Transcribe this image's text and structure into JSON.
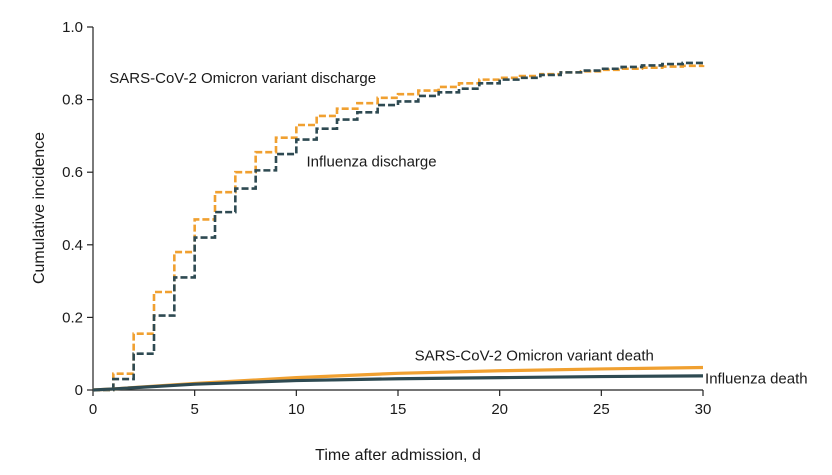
{
  "chart_data": {
    "type": "line",
    "xlabel": "Time after admission, d",
    "ylabel": "Cumulative incidence",
    "xlim": [
      0,
      30
    ],
    "ylim": [
      0,
      1.0
    ],
    "x_ticks": [
      0,
      5,
      10,
      15,
      20,
      25,
      30
    ],
    "x_tick_labels": [
      "0",
      "5",
      "10",
      "15",
      "20",
      "25",
      "30"
    ],
    "y_ticks": [
      0,
      0.2,
      0.4,
      0.6,
      0.8,
      1.0
    ],
    "y_tick_labels": [
      "0",
      "0.2",
      "0.4",
      "0.6",
      "0.8",
      "1.0"
    ],
    "grid": false,
    "series": [
      {
        "name": "SARS-CoV-2 Omicron variant discharge",
        "color": "#f0a030",
        "style": "dashed-step",
        "x": [
          0,
          1,
          2,
          3,
          4,
          5,
          6,
          7,
          8,
          9,
          10,
          11,
          12,
          13,
          14,
          15,
          16,
          17,
          18,
          19,
          20,
          21,
          22,
          23,
          24,
          25,
          26,
          27,
          28,
          29,
          30
        ],
        "y": [
          0,
          0.045,
          0.155,
          0.27,
          0.38,
          0.47,
          0.545,
          0.6,
          0.655,
          0.695,
          0.73,
          0.755,
          0.775,
          0.79,
          0.805,
          0.815,
          0.825,
          0.835,
          0.845,
          0.855,
          0.86,
          0.865,
          0.87,
          0.875,
          0.878,
          0.882,
          0.885,
          0.888,
          0.891,
          0.893,
          0.895
        ]
      },
      {
        "name": "Influenza discharge",
        "color": "#2e4a52",
        "style": "dashed-step",
        "x": [
          0,
          1,
          2,
          3,
          4,
          5,
          6,
          7,
          8,
          9,
          10,
          11,
          12,
          13,
          14,
          15,
          16,
          17,
          18,
          19,
          20,
          21,
          22,
          23,
          24,
          25,
          26,
          27,
          28,
          29,
          30
        ],
        "y": [
          0,
          0.03,
          0.1,
          0.205,
          0.31,
          0.42,
          0.49,
          0.555,
          0.605,
          0.65,
          0.69,
          0.72,
          0.745,
          0.765,
          0.785,
          0.795,
          0.81,
          0.82,
          0.83,
          0.845,
          0.855,
          0.86,
          0.868,
          0.875,
          0.88,
          0.885,
          0.89,
          0.894,
          0.898,
          0.901,
          0.905
        ]
      },
      {
        "name": "SARS-CoV-2 Omicron variant death",
        "color": "#f0a030",
        "style": "solid",
        "x": [
          0,
          1,
          5,
          10,
          15,
          20,
          25,
          30
        ],
        "y": [
          0,
          0.003,
          0.018,
          0.034,
          0.046,
          0.053,
          0.058,
          0.062
        ]
      },
      {
        "name": "Influenza death",
        "color": "#2e4a52",
        "style": "solid",
        "x": [
          0,
          1,
          5,
          10,
          15,
          20,
          25,
          30
        ],
        "y": [
          0,
          0.003,
          0.016,
          0.026,
          0.031,
          0.034,
          0.037,
          0.039
        ]
      }
    ],
    "annotations": [
      {
        "text": "SARS-CoV-2 Omicron variant discharge",
        "x": 0.8,
        "y": 0.86,
        "anchor": "start"
      },
      {
        "text": "Influenza discharge",
        "x": 10.5,
        "y": 0.63,
        "anchor": "start"
      },
      {
        "text": "SARS-CoV-2 Omicron variant death",
        "x": 21.7,
        "y": 0.095,
        "anchor": "middle"
      },
      {
        "text": "Influenza death",
        "x": 30.1,
        "y": 0.032,
        "anchor": "start"
      }
    ]
  }
}
